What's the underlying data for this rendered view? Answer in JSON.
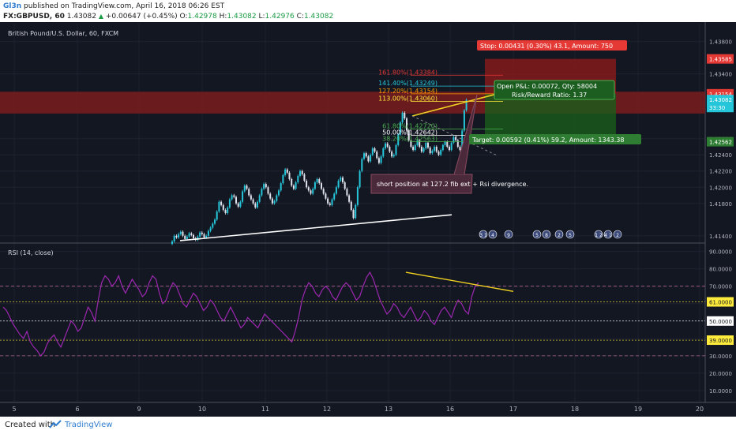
{
  "header": {
    "author": "Gl3n",
    "published_text": "published on TradingView.com, April 16, 2018 06:26 EST",
    "symbol": "FX:GBPUSD, 60",
    "last": "1.43082",
    "change_arrow": "▲",
    "change": "+0.00647 (+0.45%)",
    "open_label": "O:",
    "open": "1.42978",
    "high_label": "H:",
    "high": "1.43082",
    "low_label": "L:",
    "low": "1.42976",
    "close_label": "C:",
    "close": "1.43082"
  },
  "footer": {
    "created_with": "Created with",
    "brand": "TradingView"
  },
  "colors": {
    "background": "#131722",
    "bull": "#26c6da",
    "bear": "#e0e3eb",
    "stop_zone": "#8b1a1a",
    "target_zone": "#1a5d1a",
    "rsi_line": "#9c27b0",
    "trend_line": "#f0d020",
    "support_line": "#ffffff"
  },
  "chart_data": [
    {
      "type": "candlestick",
      "title": "British Pound/U.S. Dollar, 60, FXCM",
      "x_tick_labels": [
        "5",
        "6",
        "9",
        "10",
        "11",
        "12",
        "13",
        "16",
        "17",
        "18",
        "19",
        "20"
      ],
      "y_tick_labels": [
        "1.43800",
        "1.43400",
        "1.43000",
        "1.42600",
        "1.42400",
        "1.42200",
        "1.42000",
        "1.41800",
        "1.41400"
      ],
      "ylim": [
        1.4133,
        1.4402
      ],
      "price_labels": [
        {
          "text": "1.43585",
          "value": 1.43585,
          "color": "#e53935"
        },
        {
          "text": "1.43154",
          "value": 1.43154,
          "color": "#e53935"
        },
        {
          "text": "1.43082",
          "value": 1.43082,
          "color": "#26c6da"
        },
        {
          "text": "33:30",
          "value": 1.42985,
          "color": "#26c6da"
        },
        {
          "text": "1.42562",
          "value": 1.42562,
          "color": "#2e7d32"
        }
      ],
      "fib_levels": [
        {
          "label": "161.80%(1.43384)",
          "value": 1.43384,
          "color": "#e53935"
        },
        {
          "label": "141.40%(1.43249)",
          "value": 1.43249,
          "color": "#26c6da"
        },
        {
          "label": "127.20%(1.43154)",
          "value": 1.43154,
          "color": "#ff9800"
        },
        {
          "label": "113.00%(1.43060)",
          "value": 1.4306,
          "color": "#ffeb3b"
        },
        {
          "label": "61.80%(1.42720)",
          "value": 1.4272,
          "color": "#4caf50"
        },
        {
          "label": "50.00%(1.42642)",
          "value": 1.42642,
          "color": "#ffffff"
        },
        {
          "label": "38.20%(1.42563)",
          "value": 1.42563,
          "color": "#4caf50"
        }
      ],
      "position": {
        "entry": 1.43154,
        "stop": 1.43585,
        "target": 1.42562,
        "stop_label": "Stop: 0.00431 (0.30%) 43.1, Amount: 750",
        "target_label": "Target: 0.00592 (0.41%) 59.2, Amount: 1343.38",
        "pnl_label": "Open P&L: 0.00072, Qty: 58004",
        "ratio_label": "Risk/Reward Ratio: 1.37"
      },
      "resistance_zone": [
        1.4291,
        1.4318
      ],
      "annotation": "short position at 127.2 fib ext + Rsi divergence.",
      "event_flags": [
        "3 1",
        "4",
        "9",
        "5",
        "8",
        "2",
        "5",
        "1 2",
        "4 1",
        "2"
      ],
      "close_series": [
        1.4133,
        1.414,
        1.4138,
        1.4142,
        1.4145,
        1.414,
        1.4136,
        1.4139,
        1.4143,
        1.4141,
        1.4137,
        1.4135,
        1.4139,
        1.4144,
        1.4142,
        1.4138,
        1.414,
        1.4146,
        1.415,
        1.4155,
        1.416,
        1.417,
        1.4182,
        1.4178,
        1.4172,
        1.4168,
        1.4175,
        1.4185,
        1.419,
        1.4188,
        1.418,
        1.4176,
        1.4182,
        1.4195,
        1.4202,
        1.4198,
        1.419,
        1.4185,
        1.418,
        1.4175,
        1.4182,
        1.419,
        1.4198,
        1.4204,
        1.42,
        1.4192,
        1.4186,
        1.418,
        1.4183,
        1.419,
        1.4196,
        1.4205,
        1.4215,
        1.4222,
        1.4218,
        1.421,
        1.4202,
        1.4198,
        1.4206,
        1.4214,
        1.422,
        1.4216,
        1.4208,
        1.42,
        1.4196,
        1.4192,
        1.4198,
        1.4206,
        1.421,
        1.4205,
        1.4198,
        1.4192,
        1.4186,
        1.418,
        1.4178,
        1.4185,
        1.4192,
        1.42,
        1.4208,
        1.4212,
        1.4206,
        1.4198,
        1.419,
        1.4182,
        1.4172,
        1.4162,
        1.4178,
        1.42,
        1.422,
        1.4235,
        1.4242,
        1.4238,
        1.4232,
        1.424,
        1.4248,
        1.4244,
        1.4236,
        1.423,
        1.4238,
        1.4248,
        1.4254,
        1.425,
        1.4244,
        1.4238,
        1.424,
        1.4252,
        1.4265,
        1.428,
        1.4292,
        1.4285,
        1.427,
        1.4258,
        1.425,
        1.4246,
        1.4252,
        1.4258,
        1.425,
        1.4244,
        1.4248,
        1.4255,
        1.4249,
        1.4242,
        1.4245,
        1.425,
        1.4244,
        1.424,
        1.4246,
        1.4252,
        1.4256,
        1.425,
        1.4246,
        1.4255,
        1.4262,
        1.4258,
        1.425,
        1.4246,
        1.427,
        1.4295,
        1.4308
      ]
    },
    {
      "type": "line",
      "title": "RSI (14, close)",
      "y_tick_labels": [
        "90.0000",
        "80.0000",
        "70.0000",
        "60.0000",
        "50.0000",
        "40.0000",
        "30.0000",
        "20.0000",
        "10.0000"
      ],
      "ylim": [
        5,
        93
      ],
      "level_labels": [
        {
          "text": "61.0000",
          "value": 61,
          "color": "#ffeb3b"
        },
        {
          "text": "50.0000",
          "value": 50,
          "color": "#ffffff"
        },
        {
          "text": "39.0000",
          "value": 39,
          "color": "#ffeb3b"
        }
      ],
      "bands": [
        70,
        30
      ],
      "values": [
        58,
        56,
        52,
        48,
        45,
        42,
        40,
        44,
        38,
        35,
        33,
        30,
        32,
        37,
        40,
        42,
        38,
        35,
        40,
        45,
        50,
        48,
        44,
        46,
        52,
        58,
        55,
        50,
        62,
        72,
        76,
        74,
        70,
        72,
        76,
        70,
        66,
        70,
        74,
        71,
        68,
        64,
        66,
        72,
        76,
        74,
        66,
        60,
        62,
        68,
        72,
        70,
        65,
        60,
        58,
        62,
        66,
        64,
        60,
        56,
        58,
        62,
        60,
        56,
        52,
        50,
        54,
        58,
        54,
        50,
        46,
        48,
        52,
        50,
        48,
        46,
        50,
        54,
        52,
        50,
        48,
        46,
        44,
        42,
        40,
        38,
        44,
        52,
        62,
        68,
        72,
        70,
        66,
        64,
        68,
        70,
        68,
        64,
        62,
        66,
        70,
        72,
        70,
        66,
        62,
        64,
        70,
        75,
        78,
        74,
        68,
        62,
        58,
        54,
        56,
        60,
        58,
        54,
        52,
        55,
        58,
        54,
        50,
        52,
        56,
        54,
        50,
        48,
        52,
        56,
        58,
        55,
        52,
        58,
        62,
        60,
        56,
        54,
        64,
        70,
        72
      ]
    }
  ]
}
